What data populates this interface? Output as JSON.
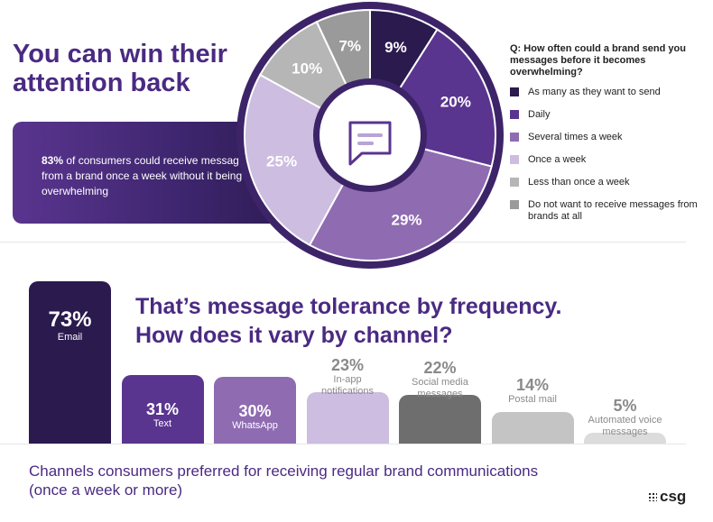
{
  "header": {
    "title_line1": "You can win their",
    "title_line2": "attention back"
  },
  "callout": {
    "highlight": "83%",
    "text": " of consumers could receive messages from a brand once a week without it being overwhelming"
  },
  "legend": {
    "question": "Q: How often could a brand send you messages before it becomes overwhelming?"
  },
  "colors": {
    "accent": "#4a2a82"
  },
  "chart_data": [
    {
      "type": "pie",
      "categories": [
        "As many as they want to send",
        "Daily",
        "Several times a week",
        "Once a week",
        "Less than once a week",
        "Do not want to receive messages from brands at all"
      ],
      "values": [
        9,
        20,
        29,
        25,
        10,
        7
      ],
      "labels": [
        "9%",
        "20%",
        "29%",
        "25%",
        "10%",
        "7%"
      ],
      "colors": [
        "#2a1a4e",
        "#5a358f",
        "#8f6bb2",
        "#cdbde0",
        "#b6b6b6",
        "#9a9a9a"
      ],
      "legend_position": "right"
    },
    {
      "type": "bar",
      "categories": [
        "Email",
        "Text",
        "WhatsApp",
        "In-app notifications",
        "Social media messages",
        "Postal mail",
        "Automated voice messages"
      ],
      "values": [
        73,
        31,
        30,
        23,
        22,
        14,
        5
      ],
      "labels": [
        "73%",
        "31%",
        "30%",
        "23%",
        "22%",
        "14%",
        "5%"
      ],
      "colors": [
        "#2a1a4e",
        "#5a358f",
        "#8f6bb2",
        "#cdbde0",
        "#6e6e6e",
        "#c4c4c4",
        "#dcdcdc"
      ],
      "title": "That’s message tolerance by frequency. How does it vary by channel?",
      "caption": "Channels consumers preferred for receiving regular brand communications (once a week or more)"
    }
  ],
  "headline": {
    "line1": "That’s message tolerance by frequency.",
    "line2": "How does it vary by channel?"
  },
  "caption": {
    "line1": "Channels consumers preferred for receiving regular brand communications",
    "line2": "(once a week or more)"
  },
  "logo": {
    "text": "csg"
  },
  "icons": {
    "center": "message-bubble-icon"
  }
}
